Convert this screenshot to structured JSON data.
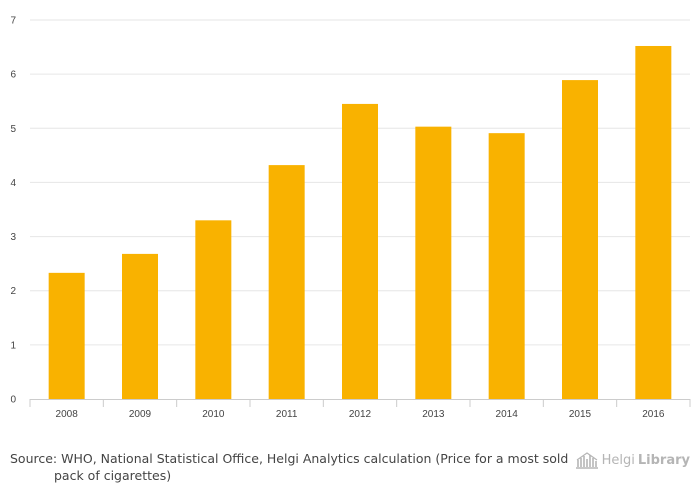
{
  "chart_data": {
    "type": "bar",
    "categories": [
      "2008",
      "2009",
      "2010",
      "2011",
      "2012",
      "2013",
      "2014",
      "2015",
      "2016"
    ],
    "values": [
      2.33,
      2.68,
      3.3,
      4.32,
      5.45,
      5.03,
      4.91,
      5.89,
      6.52
    ],
    "ylim": [
      0,
      7
    ],
    "yticks": [
      0,
      1,
      2,
      3,
      4,
      5,
      6,
      7
    ],
    "grid": true,
    "legend": "none",
    "bar_color": "#F9B200",
    "grid_color": "#e6e6e6",
    "title": "",
    "xlabel": "",
    "ylabel": ""
  },
  "footer": {
    "source_text": "Source:  WHO, National Statistical Office, Helgi Analytics calculation (Price for a most sold pack of cigarettes)",
    "logo_light": "Helgi",
    "logo_bold": "Library",
    "logo_icon": "library-building-icon"
  }
}
